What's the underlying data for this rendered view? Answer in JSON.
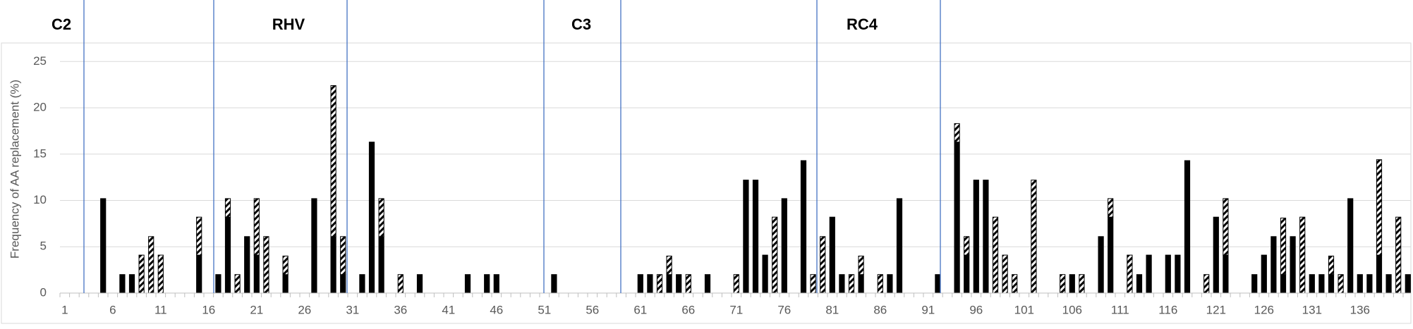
{
  "chart_data": {
    "type": "stacked_bar",
    "y_label": "Frequency of AA replacement (%)",
    "annotations": [
      "C2",
      "RHV",
      "C3",
      "RC4"
    ],
    "annotation_line_color": "#4472c4",
    "categories": [
      "1",
      null,
      null,
      null,
      null,
      "6",
      null,
      null,
      null,
      null,
      "11",
      null,
      null,
      null,
      null,
      "16",
      null,
      null,
      null,
      null,
      "21",
      null,
      null,
      null,
      null,
      "26",
      null,
      null,
      null,
      null,
      "31",
      null,
      null,
      null,
      null,
      "36",
      null,
      null,
      null,
      null,
      "41",
      null,
      null,
      null,
      null,
      "46",
      null,
      null,
      null,
      null,
      "51",
      null,
      null,
      null,
      null,
      "56",
      null,
      null,
      null,
      null,
      "61",
      null,
      null,
      null,
      null,
      "66",
      null,
      null,
      null,
      null,
      "71",
      null,
      null,
      null,
      null,
      "76",
      null,
      null,
      null,
      null,
      "81",
      null,
      null,
      null,
      null,
      "86",
      null,
      null,
      null,
      null,
      "91",
      null,
      null,
      null,
      null,
      "96",
      null,
      null,
      null,
      null,
      "101",
      null,
      null,
      null,
      null,
      "106",
      null,
      null,
      null,
      null,
      "111",
      null,
      null,
      null,
      null,
      "116",
      null,
      null,
      null,
      null,
      "121",
      null,
      null,
      null,
      null,
      "126",
      null,
      null,
      null,
      null,
      "131",
      null,
      null,
      null,
      null,
      "136",
      null,
      null,
      null,
      null,
      null
    ],
    "series": [
      {
        "color": "#000000",
        "pattern": "solid",
        "values": [
          0,
          0,
          0,
          0,
          10.2,
          0,
          2,
          2,
          0,
          0,
          0,
          0,
          0,
          0,
          4.1,
          0,
          2,
          8.2,
          0,
          6.1,
          4.1,
          0,
          0,
          2,
          0,
          0,
          10.2,
          0,
          6.1,
          2,
          0,
          2,
          16.3,
          6.1,
          0,
          0,
          0,
          2,
          0,
          0,
          0,
          0,
          2,
          0,
          2,
          2,
          0,
          0,
          0,
          0,
          0,
          2,
          0,
          0,
          0,
          0,
          0,
          0,
          0,
          0,
          2,
          2,
          0,
          2,
          2,
          0,
          0,
          2,
          0,
          0,
          0,
          12.2,
          12.2,
          4.1,
          0,
          10.2,
          0,
          14.3,
          0,
          0,
          8.2,
          2,
          0,
          2,
          0,
          0,
          2,
          10.2,
          0,
          0,
          0,
          2,
          0,
          16.3,
          4.1,
          12.2,
          12.2,
          0,
          0,
          0,
          0,
          0,
          0,
          0,
          0,
          2,
          0,
          0,
          6.1,
          8.2,
          0,
          0,
          2,
          4.1,
          0,
          4.1,
          4.1,
          14.3,
          0,
          0,
          8.2,
          4.1,
          0,
          0,
          2,
          4.1,
          6.1,
          2,
          6.1,
          0,
          2,
          2,
          2,
          0,
          10.2,
          2,
          2,
          4.1,
          2,
          0,
          2
        ]
      },
      {
        "color": "#000000",
        "pattern": "hatch",
        "values": [
          0,
          0,
          0,
          0,
          0,
          0,
          0,
          0,
          4.1,
          6.1,
          4.1,
          0,
          0,
          0,
          4.1,
          0,
          0,
          2,
          2,
          0,
          6.1,
          6.1,
          0,
          2,
          0,
          0,
          0,
          0,
          16.3,
          4.1,
          0,
          0,
          0,
          4.1,
          0,
          2,
          0,
          0,
          0,
          0,
          0,
          0,
          0,
          0,
          0,
          0,
          0,
          0,
          0,
          0,
          0,
          0,
          0,
          0,
          0,
          0,
          0,
          0,
          0,
          0,
          0,
          0,
          2,
          2,
          0,
          2,
          0,
          0,
          0,
          0,
          2,
          0,
          0,
          0,
          8.2,
          0,
          0,
          0,
          2,
          6.1,
          0,
          0,
          2,
          2,
          0,
          2,
          0,
          0,
          0,
          0,
          0,
          0,
          0,
          2,
          2,
          0,
          0,
          8.2,
          4.1,
          2,
          0,
          12.2,
          0,
          0,
          2,
          0,
          2,
          0,
          0,
          2,
          0,
          4.1,
          0,
          0,
          0,
          0,
          0,
          0,
          0,
          2,
          0,
          6.1,
          0,
          0,
          0,
          0,
          0,
          6.1,
          0,
          8.2,
          0,
          0,
          2,
          2,
          0,
          0,
          0,
          10.3,
          0,
          8.2,
          0
        ]
      }
    ],
    "ylim": [
      0,
      27
    ],
    "yticks": [
      0,
      5,
      10,
      15,
      20,
      25
    ],
    "grid": true
  }
}
